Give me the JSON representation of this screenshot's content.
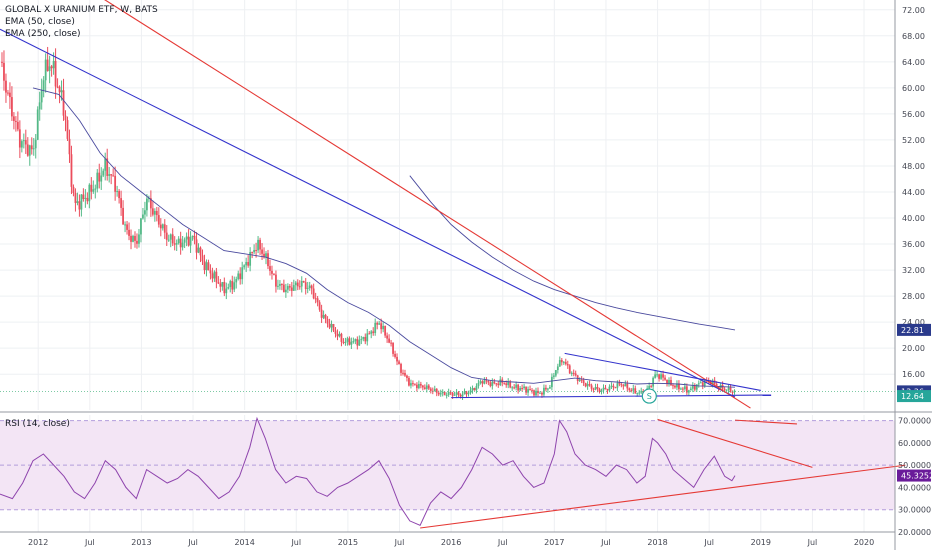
{
  "legend": {
    "title": "GLOBAL X URANIUM ETF, W, BATS",
    "ema50": "EMA (50, close)",
    "ema250": "EMA (250, close)",
    "rsi": "RSI (14, close)"
  },
  "colors": {
    "up": "#53b987",
    "down": "#eb4d5c",
    "ema": "#4a4a9e",
    "blue_trend": "#3333cc",
    "red_trend": "#e53935",
    "rsi_line": "#8e44ad",
    "rsi_band": "#f3e5f5",
    "tag_blue": "#2a3a8c",
    "tag_green": "#26a69a",
    "tag_purple": "#6a1b9a"
  },
  "chart_data": [
    {
      "type": "candlestick",
      "title": "GLOBAL X URANIUM ETF, W, BATS",
      "x_ticks": [
        "2012",
        "Jul",
        "2013",
        "Jul",
        "2014",
        "Jul",
        "2015",
        "Jul",
        "2016",
        "Jul",
        "2017",
        "Jul",
        "2018",
        "Jul",
        "2019",
        "Jul",
        "2020"
      ],
      "x_tick_years": [
        2012.0,
        2012.5,
        2013.0,
        2013.5,
        2014.0,
        2014.5,
        2015.0,
        2015.5,
        2016.0,
        2016.5,
        2017.0,
        2017.5,
        2018.0,
        2018.5,
        2019.0,
        2019.5,
        2020.0
      ],
      "xlim": [
        2011.63,
        2020.3
      ],
      "y_ticks": [
        "72.00",
        "68.00",
        "64.00",
        "60.00",
        "56.00",
        "52.00",
        "48.00",
        "44.00",
        "40.00",
        "36.00",
        "32.00",
        "28.00",
        "24.00",
        "20.00",
        "16.00"
      ],
      "y_tick_values": [
        72,
        68,
        64,
        60,
        56,
        52,
        48,
        44,
        40,
        36,
        32,
        28,
        24,
        20,
        16
      ],
      "ylim": [
        10.5,
        73.5
      ],
      "price_path": [
        [
          2011.63,
          64
        ],
        [
          2011.72,
          58
        ],
        [
          2011.82,
          52
        ],
        [
          2011.95,
          50
        ],
        [
          2012.05,
          62
        ],
        [
          2012.12,
          64
        ],
        [
          2012.25,
          57
        ],
        [
          2012.35,
          42
        ],
        [
          2012.45,
          43
        ],
        [
          2012.55,
          45
        ],
        [
          2012.65,
          48
        ],
        [
          2012.75,
          45
        ],
        [
          2012.85,
          38
        ],
        [
          2012.95,
          36
        ],
        [
          2013.05,
          43
        ],
        [
          2013.15,
          40
        ],
        [
          2013.25,
          37
        ],
        [
          2013.35,
          36
        ],
        [
          2013.5,
          37
        ],
        [
          2013.6,
          33
        ],
        [
          2013.7,
          31
        ],
        [
          2013.8,
          29
        ],
        [
          2013.9,
          30
        ],
        [
          2014.05,
          34
        ],
        [
          2014.12,
          36
        ],
        [
          2014.2,
          34
        ],
        [
          2014.3,
          30
        ],
        [
          2014.4,
          29
        ],
        [
          2014.55,
          30
        ],
        [
          2014.65,
          29
        ],
        [
          2014.75,
          25
        ],
        [
          2014.85,
          23
        ],
        [
          2014.95,
          21
        ],
        [
          2015.1,
          21
        ],
        [
          2015.2,
          22
        ],
        [
          2015.3,
          24
        ],
        [
          2015.4,
          21
        ],
        [
          2015.5,
          17
        ],
        [
          2015.6,
          14.5
        ],
        [
          2015.75,
          14
        ],
        [
          2015.9,
          13
        ],
        [
          2016.0,
          13
        ],
        [
          2016.1,
          12.8
        ],
        [
          2016.2,
          13.5
        ],
        [
          2016.3,
          15
        ],
        [
          2016.4,
          14.5
        ],
        [
          2016.5,
          14.8
        ],
        [
          2016.6,
          14
        ],
        [
          2016.7,
          13.8
        ],
        [
          2016.85,
          13
        ],
        [
          2016.95,
          14
        ],
        [
          2017.02,
          17
        ],
        [
          2017.08,
          18.3
        ],
        [
          2017.15,
          16.5
        ],
        [
          2017.25,
          15
        ],
        [
          2017.35,
          14
        ],
        [
          2017.45,
          13.5
        ],
        [
          2017.55,
          14
        ],
        [
          2017.65,
          14.5
        ],
        [
          2017.75,
          13.5
        ],
        [
          2017.85,
          13
        ],
        [
          2017.92,
          14
        ],
        [
          2017.98,
          16
        ],
        [
          2018.05,
          15.5
        ],
        [
          2018.12,
          14.5
        ],
        [
          2018.2,
          14
        ],
        [
          2018.3,
          13.5
        ],
        [
          2018.4,
          14.5
        ],
        [
          2018.5,
          15
        ],
        [
          2018.6,
          14
        ],
        [
          2018.7,
          13.5
        ],
        [
          2018.75,
          13.36
        ]
      ],
      "series": [
        {
          "name": "EMA (50, close)",
          "points": [
            [
              2011.95,
              60
            ],
            [
              2012.2,
              59
            ],
            [
              2012.4,
              55
            ],
            [
              2012.6,
              50
            ],
            [
              2012.8,
              46.5
            ],
            [
              2013.0,
              44
            ],
            [
              2013.2,
              41.5
            ],
            [
              2013.4,
              39
            ],
            [
              2013.6,
              37
            ],
            [
              2013.8,
              35
            ],
            [
              2014.0,
              34.5
            ],
            [
              2014.2,
              34
            ],
            [
              2014.4,
              33
            ],
            [
              2014.6,
              31.5
            ],
            [
              2014.8,
              29
            ],
            [
              2015.0,
              27
            ],
            [
              2015.2,
              25.5
            ],
            [
              2015.4,
              23.5
            ],
            [
              2015.6,
              21
            ],
            [
              2015.8,
              19
            ],
            [
              2016.0,
              17
            ],
            [
              2016.2,
              15.5
            ],
            [
              2016.4,
              15
            ],
            [
              2016.6,
              14.8
            ],
            [
              2016.8,
              14.6
            ],
            [
              2017.0,
              15
            ],
            [
              2017.2,
              15.4
            ],
            [
              2017.4,
              15
            ],
            [
              2017.6,
              14.8
            ],
            [
              2017.8,
              14.5
            ],
            [
              2018.0,
              14.6
            ],
            [
              2018.2,
              14.5
            ],
            [
              2018.4,
              14.2
            ],
            [
              2018.6,
              14.1
            ],
            [
              2018.75,
              14
            ]
          ]
        },
        {
          "name": "EMA (250, close)",
          "points": [
            [
              2015.6,
              46.5
            ],
            [
              2015.8,
              42.5
            ],
            [
              2016.0,
              39
            ],
            [
              2016.2,
              36.3
            ],
            [
              2016.4,
              34
            ],
            [
              2016.6,
              32
            ],
            [
              2016.8,
              30.3
            ],
            [
              2017.0,
              29
            ],
            [
              2017.2,
              28
            ],
            [
              2017.4,
              27
            ],
            [
              2017.6,
              26.2
            ],
            [
              2017.8,
              25.5
            ],
            [
              2018.0,
              24.9
            ],
            [
              2018.2,
              24.3
            ],
            [
              2018.4,
              23.7
            ],
            [
              2018.6,
              23.2
            ],
            [
              2018.75,
              22.81
            ]
          ]
        }
      ],
      "price_tags": [
        {
          "label": "22.81",
          "value": 22.81,
          "color": "#2a3a8c"
        },
        {
          "label": "13.36",
          "value": 13.36,
          "color": "#2a3a8c"
        },
        {
          "label": "12.64",
          "value": 12.64,
          "color": "#26a69a"
        }
      ],
      "marker": {
        "label": "S",
        "x": 2017.92,
        "y": 12.64
      }
    },
    {
      "type": "line",
      "title": "RSI (14, close)",
      "y_ticks": [
        "70.0000",
        "60.0000",
        "50.0000",
        "40.0000",
        "30.0000",
        "20.0000"
      ],
      "y_tick_values": [
        70,
        60,
        50,
        40,
        30,
        20
      ],
      "ylim": [
        20,
        72.5
      ],
      "band": [
        30,
        70
      ],
      "rsi_points": [
        [
          2011.63,
          37
        ],
        [
          2011.75,
          35
        ],
        [
          2011.85,
          42
        ],
        [
          2011.95,
          52
        ],
        [
          2012.05,
          55
        ],
        [
          2012.15,
          50
        ],
        [
          2012.25,
          45
        ],
        [
          2012.35,
          38
        ],
        [
          2012.45,
          35
        ],
        [
          2012.55,
          42
        ],
        [
          2012.65,
          52
        ],
        [
          2012.75,
          48
        ],
        [
          2012.85,
          40
        ],
        [
          2012.95,
          35
        ],
        [
          2013.05,
          48
        ],
        [
          2013.15,
          45
        ],
        [
          2013.25,
          42
        ],
        [
          2013.35,
          44
        ],
        [
          2013.45,
          48
        ],
        [
          2013.55,
          45
        ],
        [
          2013.65,
          40
        ],
        [
          2013.75,
          35
        ],
        [
          2013.85,
          38
        ],
        [
          2013.95,
          45
        ],
        [
          2014.05,
          58
        ],
        [
          2014.12,
          71
        ],
        [
          2014.2,
          62
        ],
        [
          2014.3,
          48
        ],
        [
          2014.4,
          42
        ],
        [
          2014.5,
          45
        ],
        [
          2014.6,
          44
        ],
        [
          2014.7,
          38
        ],
        [
          2014.8,
          36
        ],
        [
          2014.9,
          40
        ],
        [
          2015.0,
          42
        ],
        [
          2015.1,
          45
        ],
        [
          2015.2,
          48
        ],
        [
          2015.3,
          52
        ],
        [
          2015.4,
          44
        ],
        [
          2015.5,
          32
        ],
        [
          2015.6,
          25
        ],
        [
          2015.7,
          23
        ],
        [
          2015.8,
          33
        ],
        [
          2015.9,
          38
        ],
        [
          2016.0,
          35
        ],
        [
          2016.1,
          40
        ],
        [
          2016.2,
          48
        ],
        [
          2016.3,
          58
        ],
        [
          2016.4,
          55
        ],
        [
          2016.5,
          50
        ],
        [
          2016.6,
          52
        ],
        [
          2016.7,
          45
        ],
        [
          2016.8,
          40
        ],
        [
          2016.9,
          42
        ],
        [
          2017.0,
          55
        ],
        [
          2017.05,
          70
        ],
        [
          2017.12,
          65
        ],
        [
          2017.2,
          55
        ],
        [
          2017.3,
          50
        ],
        [
          2017.4,
          48
        ],
        [
          2017.5,
          45
        ],
        [
          2017.6,
          50
        ],
        [
          2017.7,
          48
        ],
        [
          2017.8,
          42
        ],
        [
          2017.88,
          45
        ],
        [
          2017.95,
          62
        ],
        [
          2018.0,
          60
        ],
        [
          2018.08,
          55
        ],
        [
          2018.15,
          48
        ],
        [
          2018.25,
          44
        ],
        [
          2018.35,
          40
        ],
        [
          2018.45,
          48
        ],
        [
          2018.55,
          54
        ],
        [
          2018.65,
          45
        ],
        [
          2018.72,
          43
        ],
        [
          2018.75,
          45.3252
        ]
      ],
      "current": {
        "label": "45.3252",
        "value": 45.3252,
        "color": "#6a1b9a"
      }
    }
  ],
  "trendlines": [
    {
      "pane": "price",
      "color": "blue_trend",
      "p1": [
        2011.63,
        69
      ],
      "p2": [
        2018.75,
        12.5
      ]
    },
    {
      "pane": "price",
      "color": "red_trend",
      "p1": [
        2012.1,
        79
      ],
      "p2": [
        2018.9,
        10.8
      ]
    },
    {
      "pane": "price",
      "color": "blue_trend",
      "p1": [
        2016.0,
        12.4
      ],
      "p2": [
        2019.1,
        12.8
      ]
    },
    {
      "pane": "price",
      "color": "blue_trend",
      "p1": [
        2017.1,
        19.2
      ],
      "p2": [
        2019.0,
        13.5
      ]
    },
    {
      "pane": "rsi",
      "color": "red_trend",
      "p1": [
        2015.7,
        21.8
      ],
      "p2": [
        2020.4,
        50.0
      ]
    },
    {
      "pane": "rsi",
      "color": "red_trend",
      "p1": [
        2018.0,
        70.5
      ],
      "p2": [
        2019.5,
        49.0
      ]
    },
    {
      "pane": "rsi",
      "color": "red_trend",
      "p1": [
        2018.75,
        70.2
      ],
      "p2": [
        2019.35,
        68.5
      ]
    }
  ]
}
